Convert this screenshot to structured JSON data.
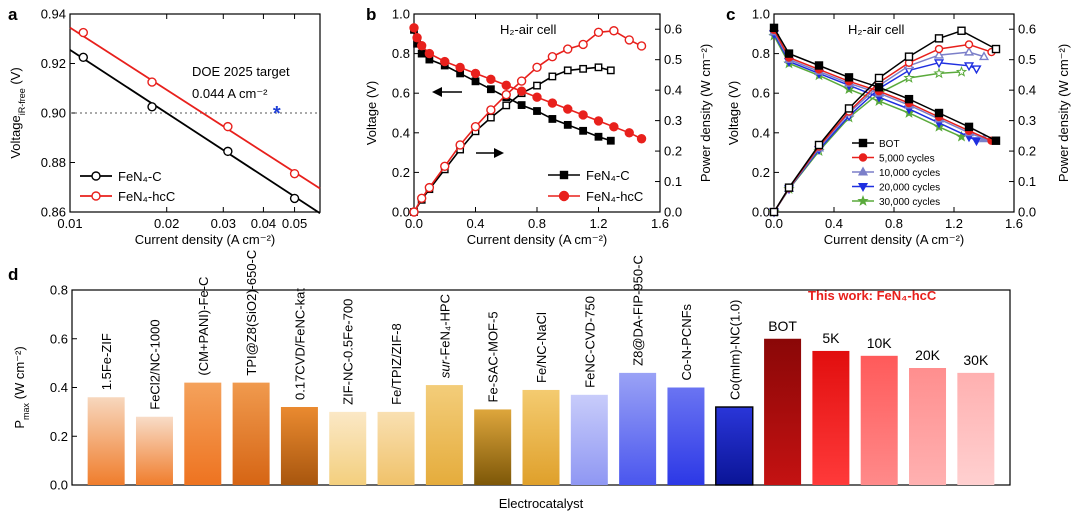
{
  "panel_labels": [
    "a",
    "b",
    "c",
    "d"
  ],
  "chart_data": [
    {
      "id": "a",
      "type": "line",
      "xlabel": "Current density (A cm⁻²)",
      "ylabel": "Voltage",
      "ylabel_sub": "iR-free",
      "ylabel_unit": " (V)",
      "x_scale": "log",
      "xlim": [
        0.01,
        0.06
      ],
      "ylim": [
        0.86,
        0.94
      ],
      "x_ticks": [
        0.01,
        0.02,
        0.03,
        0.04,
        0.05
      ],
      "x_tick_labels": [
        "0.01",
        "0.02",
        "0.03",
        "0.04",
        "0.05"
      ],
      "y_ticks": [
        0.86,
        0.88,
        0.9,
        0.92,
        0.94
      ],
      "y_tick_labels": [
        "0.86",
        "0.88",
        "0.90",
        "0.92",
        "0.94"
      ],
      "reference_line": {
        "y": 0.9,
        "style": "dotted",
        "color": "#777777"
      },
      "annotation": {
        "line1": "DOE 2025 target",
        "line2": "0.044 A cm⁻²"
      },
      "target_point": {
        "x": 0.044,
        "y": 0.9,
        "marker": "*",
        "color": "#1f3fd6"
      },
      "legend": {
        "position": "bottom-left",
        "entries": [
          "FeN₄-C",
          "FeN₄-hcC"
        ]
      },
      "series": [
        {
          "name": "FeN₄-C",
          "color": "#000000",
          "marker": "open-circle",
          "fit": [
            [
              0.01,
              0.9255
            ],
            [
              0.06,
              0.8595
            ]
          ],
          "points": [
            [
              0.011,
              0.9225
            ],
            [
              0.018,
              0.9025
            ],
            [
              0.031,
              0.8845
            ],
            [
              0.05,
              0.8655
            ]
          ]
        },
        {
          "name": "FeN₄-hcC",
          "color": "#e8201c",
          "marker": "open-circle",
          "fit": [
            [
              0.01,
              0.9345
            ],
            [
              0.06,
              0.8695
            ]
          ],
          "points": [
            [
              0.011,
              0.9325
            ],
            [
              0.018,
              0.9125
            ],
            [
              0.031,
              0.8945
            ],
            [
              0.05,
              0.8755
            ]
          ]
        }
      ]
    },
    {
      "id": "b",
      "type": "line",
      "title": "H₂-air cell",
      "xlabel": "Current density (A cm⁻²)",
      "ylabel": "Voltage (V)",
      "y2label": "Power density (W cm⁻²)",
      "xlim": [
        0,
        1.6
      ],
      "ylim": [
        0,
        1.0
      ],
      "y2lim": [
        0,
        0.65
      ],
      "x_ticks": [
        0,
        0.4,
        0.8,
        1.2,
        1.6
      ],
      "x_tick_labels": [
        "0.0",
        "0.4",
        "0.8",
        "1.2",
        "1.6"
      ],
      "y_ticks": [
        0,
        0.2,
        0.4,
        0.6,
        0.8,
        1.0
      ],
      "y_tick_labels": [
        "0.0",
        "0.2",
        "0.4",
        "0.6",
        "0.8",
        "1.0"
      ],
      "y2_ticks": [
        0,
        0.1,
        0.2,
        0.3,
        0.4,
        0.5,
        0.6
      ],
      "y2_tick_labels": [
        "0.0",
        "0.1",
        "0.2",
        "0.3",
        "0.4",
        "0.5",
        "0.6"
      ],
      "legend": {
        "position": "bottom-right",
        "entries": [
          "FeN₄-C",
          "FeN₄-hcC"
        ]
      },
      "series": [
        {
          "name": "FeN₄-C",
          "color": "#000000",
          "marker": "filled-square",
          "axis": "left",
          "kind": "polarization",
          "points": [
            [
              0.0,
              0.92
            ],
            [
              0.02,
              0.85
            ],
            [
              0.05,
              0.8
            ],
            [
              0.1,
              0.77
            ],
            [
              0.2,
              0.74
            ],
            [
              0.3,
              0.7
            ],
            [
              0.4,
              0.66
            ],
            [
              0.5,
              0.62
            ],
            [
              0.6,
              0.58
            ],
            [
              0.7,
              0.54
            ],
            [
              0.8,
              0.51
            ],
            [
              0.9,
              0.47
            ],
            [
              1.0,
              0.44
            ],
            [
              1.1,
              0.41
            ],
            [
              1.2,
              0.38
            ],
            [
              1.28,
              0.36
            ]
          ]
        },
        {
          "name": "FeN₄-C",
          "color": "#000000",
          "marker": "open-square",
          "axis": "right",
          "kind": "power",
          "points": [
            [
              0.0,
              0.0
            ],
            [
              0.05,
              0.04
            ],
            [
              0.1,
              0.075
            ],
            [
              0.2,
              0.14
            ],
            [
              0.3,
              0.205
            ],
            [
              0.4,
              0.265
            ],
            [
              0.5,
              0.31
            ],
            [
              0.6,
              0.35
            ],
            [
              0.7,
              0.39
            ],
            [
              0.8,
              0.415
            ],
            [
              0.9,
              0.445
            ],
            [
              1.0,
              0.465
            ],
            [
              1.1,
              0.47
            ],
            [
              1.2,
              0.475
            ],
            [
              1.28,
              0.465
            ]
          ]
        },
        {
          "name": "FeN₄-hcC",
          "color": "#e8201c",
          "marker": "filled-circle",
          "axis": "left",
          "kind": "polarization",
          "points": [
            [
              0.0,
              0.93
            ],
            [
              0.02,
              0.88
            ],
            [
              0.05,
              0.84
            ],
            [
              0.1,
              0.8
            ],
            [
              0.2,
              0.76
            ],
            [
              0.3,
              0.73
            ],
            [
              0.4,
              0.7
            ],
            [
              0.5,
              0.67
            ],
            [
              0.6,
              0.64
            ],
            [
              0.7,
              0.61
            ],
            [
              0.8,
              0.58
            ],
            [
              0.9,
              0.55
            ],
            [
              1.0,
              0.52
            ],
            [
              1.1,
              0.49
            ],
            [
              1.2,
              0.46
            ],
            [
              1.3,
              0.43
            ],
            [
              1.4,
              0.4
            ],
            [
              1.48,
              0.37
            ]
          ]
        },
        {
          "name": "FeN₄-hcC",
          "color": "#e8201c",
          "marker": "open-circle",
          "axis": "right",
          "kind": "power",
          "points": [
            [
              0.0,
              0.0
            ],
            [
              0.05,
              0.045
            ],
            [
              0.1,
              0.08
            ],
            [
              0.2,
              0.15
            ],
            [
              0.3,
              0.22
            ],
            [
              0.4,
              0.28
            ],
            [
              0.5,
              0.335
            ],
            [
              0.6,
              0.385
            ],
            [
              0.7,
              0.43
            ],
            [
              0.8,
              0.475
            ],
            [
              0.9,
              0.51
            ],
            [
              1.0,
              0.535
            ],
            [
              1.1,
              0.55
            ],
            [
              1.2,
              0.59
            ],
            [
              1.3,
              0.595
            ],
            [
              1.4,
              0.565
            ],
            [
              1.48,
              0.545
            ]
          ]
        }
      ]
    },
    {
      "id": "c",
      "type": "line",
      "title": "H₂-air cell",
      "xlabel": "Current density (A cm⁻²)",
      "ylabel": "Voltage (V)",
      "y2label": "Power density (W cm⁻²)",
      "xlim": [
        0,
        1.6
      ],
      "ylim": [
        0,
        1.0
      ],
      "y2lim": [
        0,
        0.65
      ],
      "x_ticks": [
        0,
        0.4,
        0.8,
        1.2,
        1.6
      ],
      "x_tick_labels": [
        "0.0",
        "0.4",
        "0.8",
        "1.2",
        "1.6"
      ],
      "y_ticks": [
        0,
        0.2,
        0.4,
        0.6,
        0.8,
        1.0
      ],
      "y_tick_labels": [
        "0.0",
        "0.2",
        "0.4",
        "0.6",
        "0.8",
        "1.0"
      ],
      "y2_ticks": [
        0,
        0.1,
        0.2,
        0.3,
        0.4,
        0.5,
        0.6
      ],
      "y2_tick_labels": [
        "0.0",
        "0.1",
        "0.2",
        "0.3",
        "0.4",
        "0.5",
        "0.6"
      ],
      "legend": {
        "position": "bottom-right",
        "entries": [
          "BOT",
          "5,000 cycles",
          "10,000 cycles",
          "20,000 cycles",
          "30,000 cycles"
        ]
      },
      "series": [
        {
          "name": "BOT",
          "color": "#000000",
          "marker": "square",
          "polarization": [
            [
              0.0,
              0.93
            ],
            [
              0.1,
              0.8
            ],
            [
              0.3,
              0.74
            ],
            [
              0.5,
              0.68
            ],
            [
              0.7,
              0.63
            ],
            [
              0.9,
              0.57
            ],
            [
              1.1,
              0.5
            ],
            [
              1.3,
              0.43
            ],
            [
              1.48,
              0.36
            ]
          ],
          "power": [
            [
              0.0,
              0.0
            ],
            [
              0.1,
              0.08
            ],
            [
              0.3,
              0.22
            ],
            [
              0.5,
              0.34
            ],
            [
              0.7,
              0.44
            ],
            [
              0.9,
              0.51
            ],
            [
              1.1,
              0.57
            ],
            [
              1.25,
              0.595
            ],
            [
              1.48,
              0.535
            ]
          ]
        },
        {
          "name": "5,000 cycles",
          "color": "#e8201c",
          "marker": "circle",
          "polarization": [
            [
              0.0,
              0.92
            ],
            [
              0.1,
              0.78
            ],
            [
              0.3,
              0.72
            ],
            [
              0.5,
              0.66
            ],
            [
              0.7,
              0.61
            ],
            [
              0.9,
              0.55
            ],
            [
              1.1,
              0.48
            ],
            [
              1.3,
              0.41
            ],
            [
              1.45,
              0.36
            ]
          ],
          "power": [
            [
              0.0,
              0.0
            ],
            [
              0.1,
              0.078
            ],
            [
              0.3,
              0.215
            ],
            [
              0.5,
              0.33
            ],
            [
              0.7,
              0.425
            ],
            [
              0.9,
              0.49
            ],
            [
              1.1,
              0.535
            ],
            [
              1.3,
              0.55
            ],
            [
              1.45,
              0.525
            ]
          ]
        },
        {
          "name": "10,000 cycles",
          "color": "#7b7fc9",
          "marker": "triangle-up",
          "polarization": [
            [
              0.0,
              0.91
            ],
            [
              0.1,
              0.77
            ],
            [
              0.3,
              0.71
            ],
            [
              0.5,
              0.65
            ],
            [
              0.7,
              0.6
            ],
            [
              0.9,
              0.54
            ],
            [
              1.1,
              0.47
            ],
            [
              1.3,
              0.4
            ],
            [
              1.4,
              0.37
            ]
          ],
          "power": [
            [
              0.0,
              0.0
            ],
            [
              0.1,
              0.077
            ],
            [
              0.3,
              0.21
            ],
            [
              0.5,
              0.325
            ],
            [
              0.7,
              0.415
            ],
            [
              0.9,
              0.48
            ],
            [
              1.1,
              0.515
            ],
            [
              1.3,
              0.525
            ],
            [
              1.4,
              0.51
            ]
          ]
        },
        {
          "name": "20,000 cycles",
          "color": "#1f2fe0",
          "marker": "triangle-down",
          "polarization": [
            [
              0.0,
              0.9
            ],
            [
              0.1,
              0.76
            ],
            [
              0.3,
              0.7
            ],
            [
              0.5,
              0.64
            ],
            [
              0.7,
              0.58
            ],
            [
              0.9,
              0.52
            ],
            [
              1.1,
              0.45
            ],
            [
              1.3,
              0.38
            ],
            [
              1.35,
              0.36
            ]
          ],
          "power": [
            [
              0.0,
              0.0
            ],
            [
              0.1,
              0.076
            ],
            [
              0.3,
              0.205
            ],
            [
              0.5,
              0.315
            ],
            [
              0.7,
              0.405
            ],
            [
              0.9,
              0.465
            ],
            [
              1.1,
              0.49
            ],
            [
              1.3,
              0.48
            ],
            [
              1.35,
              0.47
            ]
          ]
        },
        {
          "name": "30,000 cycles",
          "color": "#5aaa3c",
          "marker": "star",
          "polarization": [
            [
              0.0,
              0.89
            ],
            [
              0.1,
              0.75
            ],
            [
              0.3,
              0.69
            ],
            [
              0.5,
              0.62
            ],
            [
              0.7,
              0.56
            ],
            [
              0.9,
              0.5
            ],
            [
              1.1,
              0.43
            ],
            [
              1.25,
              0.38
            ]
          ],
          "power": [
            [
              0.0,
              0.0
            ],
            [
              0.1,
              0.075
            ],
            [
              0.3,
              0.2
            ],
            [
              0.5,
              0.31
            ],
            [
              0.7,
              0.39
            ],
            [
              0.9,
              0.44
            ],
            [
              1.1,
              0.455
            ],
            [
              1.25,
              0.46
            ]
          ]
        }
      ]
    },
    {
      "id": "d",
      "type": "bar",
      "xlabel": "Electrocatalyst",
      "ylabel": "P",
      "ylabel_sub": "max",
      "ylabel_unit": " (W cm⁻²)",
      "ylim": [
        0,
        0.8
      ],
      "y_ticks": [
        0,
        0.2,
        0.4,
        0.6,
        0.8
      ],
      "y_tick_labels": [
        "0.0",
        "0.2",
        "0.4",
        "0.6",
        "0.8"
      ],
      "headline": "This work: FeN₄-hcC",
      "categories": [
        "1.5Fe-ZIF",
        "FeCl2/NC-1000",
        "(CM+PANI)-Fe-C",
        "TPI@Z8(SiO2)-650-C",
        "0.17CVD/FeNC-kat",
        "ZIF-NC-0.5Fe-700",
        "Fe/TPIZ/ZIF-8",
        "sur-FeN₄-HPC",
        "Fe-SAC-MOF-5",
        "Fe/NC-NaCl",
        "FeNC-CVD-750",
        "Z8@DA-FIP-950-C",
        "Co-N-PCNFs",
        "Co(mIm)-NC(1.0)",
        "BOT",
        "5K",
        "10K",
        "20K",
        "30K"
      ],
      "values": [
        0.36,
        0.28,
        0.42,
        0.42,
        0.32,
        0.3,
        0.3,
        0.41,
        0.31,
        0.39,
        0.37,
        0.46,
        0.4,
        0.32,
        0.6,
        0.55,
        0.53,
        0.48,
        0.46
      ],
      "label_style": [
        "vertical",
        "vertical",
        "vertical",
        "vertical",
        "vertical",
        "vertical",
        "vertical",
        "vertical",
        "vertical",
        "vertical",
        "vertical",
        "vertical",
        "vertical",
        "vertical",
        "horizontal",
        "horizontal",
        "horizontal",
        "horizontal",
        "horizontal"
      ],
      "bar_colors": [
        [
          "#f7d7bd",
          "#f07d2c"
        ],
        [
          "#f8dcc7",
          "#f07d2c"
        ],
        [
          "#f4a25c",
          "#ee7320"
        ],
        [
          "#f09a4e",
          "#d66514"
        ],
        [
          "#ea8a30",
          "#a8560e"
        ],
        [
          "#fbe8c6",
          "#f3cf7e"
        ],
        [
          "#f9e0b2",
          "#f0c26a"
        ],
        [
          "#f3cd7a",
          "#e5ac3c"
        ],
        [
          "#dea63c",
          "#7d5708"
        ],
        [
          "#f4cb70",
          "#dfa02b"
        ],
        [
          "#c8ccfa",
          "#8f97f3"
        ],
        [
          "#9aa2f6",
          "#4a56ee"
        ],
        [
          "#6a74f2",
          "#2c38e6"
        ],
        [
          "#2a36d9",
          "#0a1496"
        ],
        [
          "#8a0707",
          "#c41212"
        ],
        [
          "#e10e0e",
          "#ff3a3a"
        ],
        [
          "#ff5a5a",
          "#ff8a8a"
        ],
        [
          "#ff8e8e",
          "#ffb1b1"
        ],
        [
          "#ffb0b0",
          "#ffd0d0"
        ]
      ],
      "outlined_bar": "Co(mIm)-NC(1.0)"
    }
  ]
}
